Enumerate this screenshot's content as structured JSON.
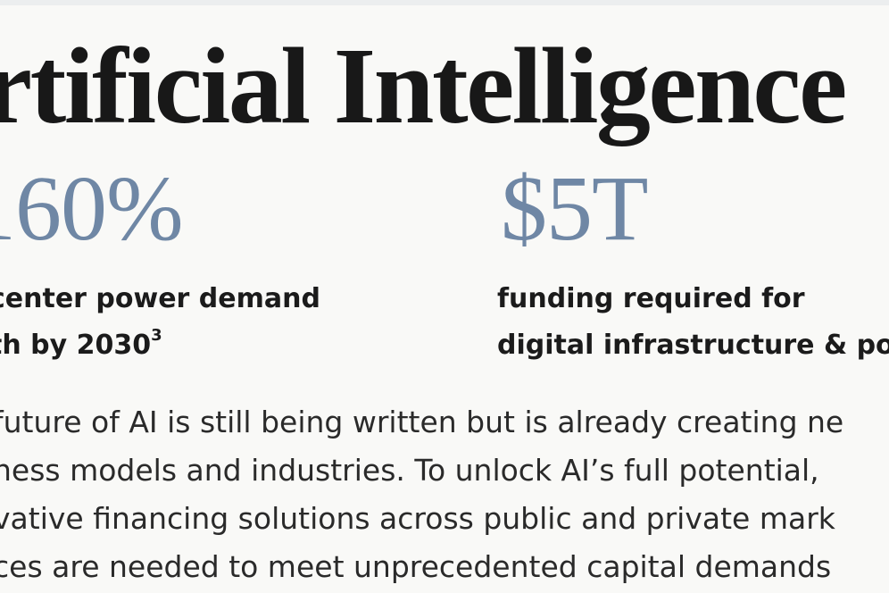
{
  "title": "rtificial Intelligence",
  "stats": [
    {
      "value": "160%",
      "label_line1": "center power demand",
      "label_line2": "th by 2030",
      "label_superscript": "3"
    },
    {
      "value": "$5T",
      "label_line1": "funding required for",
      "label_line2": "digital infrastructure & po"
    }
  ],
  "body": {
    "line1": "future of AI is still being written but is already creating ne",
    "line2": "ness models and industries. To unlock AI’s full potential,",
    "line3": "vative financing solutions across public and private mark",
    "line4": "ces are needed to meet unprecedented capital demands"
  }
}
